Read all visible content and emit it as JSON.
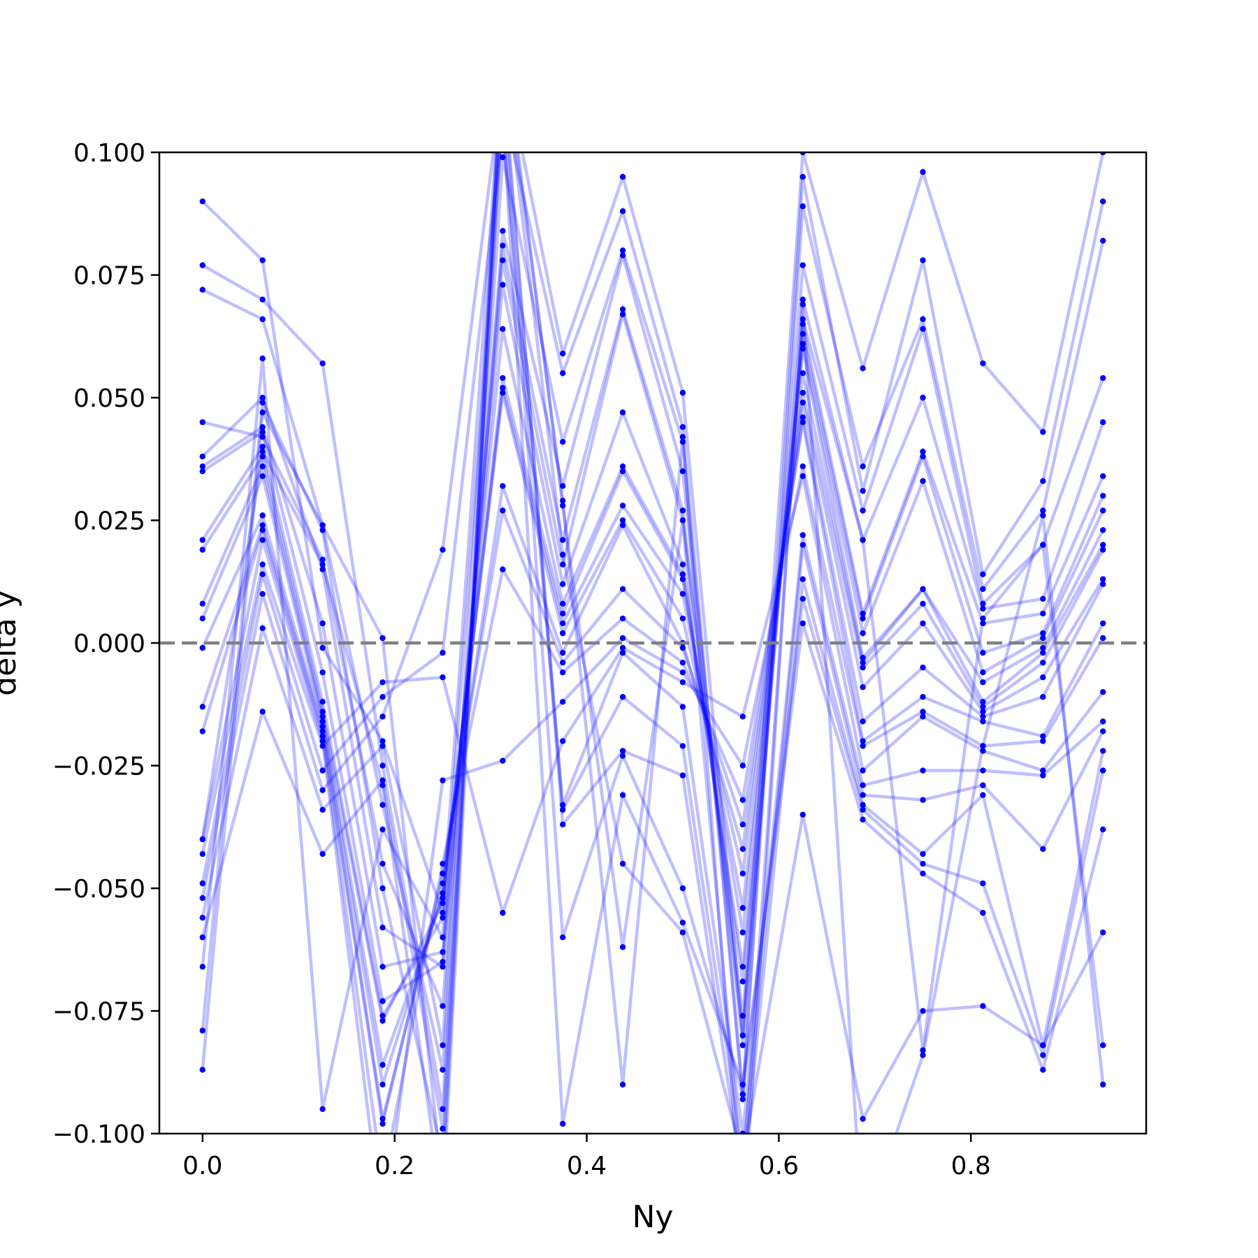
{
  "chart_data": {
    "type": "line",
    "title": "",
    "xlabel": "Ny",
    "ylabel": "delta y",
    "xlim": [
      -0.045,
      0.9825
    ],
    "ylim": [
      -0.1,
      0.1
    ],
    "xticks": [
      0.0,
      0.2,
      0.4,
      0.6,
      0.8
    ],
    "xtick_labels": [
      "0.0",
      "0.2",
      "0.4",
      "0.6",
      "0.8"
    ],
    "yticks": [
      -0.1,
      -0.075,
      -0.05,
      -0.025,
      0.0,
      0.025,
      0.05,
      0.075,
      0.1
    ],
    "ytick_labels": [
      "−0.100",
      "−0.075",
      "−0.050",
      "−0.025",
      "0.000",
      "0.025",
      "0.050",
      "0.075",
      "0.100"
    ],
    "reference_line": {
      "y": 0.0,
      "style": "dashed",
      "color": "#808080"
    },
    "grid": false,
    "legend": "none",
    "line_color": "#0000ff",
    "line_alpha": 0.25,
    "marker_color": "#0000ff",
    "x": [
      0.0,
      0.0625,
      0.125,
      0.1875,
      0.25,
      0.3125,
      0.375,
      0.4375,
      0.5,
      0.5625,
      0.625,
      0.6875,
      0.75,
      0.8125,
      0.875,
      0.9375
    ],
    "series": [
      {
        "values": [
          0.09,
          0.078,
          -0.001,
          -0.02,
          -0.055,
          0.12,
          0.059,
          0.095,
          0.051,
          -0.08,
          0.1,
          0.056,
          0.096,
          0.057,
          0.043,
          0.1
        ]
      },
      {
        "values": [
          0.077,
          0.07,
          0.057,
          -0.025,
          -0.095,
          0.11,
          0.055,
          0.088,
          0.044,
          -0.092,
          0.095,
          0.031,
          0.078,
          0.014,
          0.033,
          0.09
        ]
      },
      {
        "values": [
          0.072,
          0.066,
          0.024,
          -0.033,
          -0.087,
          0.099,
          0.041,
          0.08,
          0.041,
          -0.093,
          0.089,
          0.036,
          0.066,
          0.011,
          0.027,
          0.082
        ]
      },
      {
        "values": [
          0.045,
          0.042,
          0.017,
          -0.045,
          -0.074,
          0.084,
          0.032,
          0.079,
          0.035,
          -0.082,
          0.077,
          0.027,
          0.064,
          0.008,
          0.02,
          0.054
        ]
      },
      {
        "values": [
          0.038,
          0.05,
          0.015,
          -0.058,
          -0.066,
          0.081,
          0.021,
          0.068,
          0.027,
          -0.08,
          0.07,
          0.021,
          0.05,
          0.007,
          0.009,
          0.045
        ]
      },
      {
        "values": [
          0.036,
          0.044,
          0.004,
          -0.066,
          -0.063,
          0.078,
          0.016,
          0.067,
          0.025,
          -0.076,
          0.065,
          0.006,
          0.039,
          0.004,
          0.006,
          0.034
        ]
      },
      {
        "values": [
          0.035,
          0.043,
          -0.006,
          -0.073,
          -0.065,
          0.073,
          0.012,
          0.047,
          0.016,
          -0.069,
          0.063,
          0.005,
          0.038,
          -0.002,
          0.002,
          0.03
        ]
      },
      {
        "values": [
          0.021,
          0.04,
          -0.012,
          -0.076,
          -0.056,
          0.064,
          0.008,
          0.036,
          0.014,
          -0.066,
          0.061,
          0.002,
          0.033,
          -0.006,
          0.001,
          0.027
        ]
      },
      {
        "values": [
          0.019,
          0.038,
          -0.014,
          -0.077,
          -0.053,
          0.054,
          0.006,
          0.035,
          0.013,
          -0.059,
          0.06,
          -0.003,
          0.011,
          -0.008,
          -0.001,
          0.023
        ]
      },
      {
        "values": [
          0.008,
          0.036,
          -0.015,
          -0.086,
          -0.052,
          0.052,
          0.004,
          0.028,
          0.01,
          -0.054,
          0.055,
          -0.004,
          0.011,
          -0.012,
          -0.002,
          0.02
        ]
      },
      {
        "values": [
          0.005,
          0.034,
          -0.016,
          -0.09,
          -0.051,
          0.051,
          0.002,
          0.025,
          0.005,
          -0.047,
          0.051,
          -0.005,
          0.008,
          -0.013,
          -0.004,
          0.019
        ]
      },
      {
        "values": [
          -0.001,
          0.026,
          -0.017,
          -0.097,
          -0.049,
          0.032,
          -0.002,
          0.024,
          0.0,
          -0.042,
          0.049,
          -0.009,
          0.004,
          -0.014,
          -0.007,
          0.013
        ]
      },
      {
        "values": [
          -0.013,
          0.024,
          -0.018,
          -0.098,
          -0.047,
          0.027,
          -0.004,
          0.011,
          -0.001,
          -0.037,
          0.046,
          -0.016,
          -0.005,
          -0.015,
          -0.011,
          0.012
        ]
      },
      {
        "values": [
          -0.018,
          0.023,
          -0.019,
          -0.11,
          -0.045,
          0.015,
          -0.006,
          0.005,
          -0.004,
          -0.032,
          0.045,
          -0.02,
          -0.011,
          -0.016,
          -0.019,
          0.004
        ]
      },
      {
        "values": [
          -0.04,
          0.021,
          -0.02,
          -0.12,
          -0.028,
          -0.024,
          -0.012,
          0.001,
          -0.006,
          -0.025,
          0.036,
          -0.021,
          -0.014,
          -0.021,
          -0.02,
          0.001
        ]
      },
      {
        "values": [
          -0.043,
          0.016,
          -0.021,
          -0.008,
          -0.007,
          -0.055,
          -0.02,
          -0.001,
          -0.008,
          -0.015,
          0.034,
          -0.026,
          -0.015,
          -0.022,
          -0.026,
          -0.01
        ]
      },
      {
        "values": [
          -0.049,
          0.014,
          -0.026,
          -0.011,
          -0.002,
          0.105,
          -0.033,
          -0.002,
          -0.013,
          -0.1,
          0.022,
          -0.029,
          -0.026,
          -0.026,
          -0.027,
          -0.016
        ]
      },
      {
        "values": [
          -0.052,
          0.01,
          -0.03,
          -0.015,
          0.019,
          0.115,
          -0.034,
          -0.011,
          -0.021,
          -0.105,
          0.02,
          -0.031,
          -0.032,
          -0.029,
          -0.042,
          -0.018
        ]
      },
      {
        "values": [
          -0.056,
          0.003,
          -0.034,
          -0.021,
          -0.082,
          0.118,
          -0.037,
          -0.022,
          -0.027,
          -0.11,
          0.013,
          -0.033,
          -0.043,
          -0.031,
          -0.082,
          -0.022
        ]
      },
      {
        "values": [
          -0.06,
          -0.014,
          -0.043,
          -0.028,
          -0.099,
          0.112,
          -0.06,
          -0.023,
          -0.05,
          -0.092,
          0.009,
          -0.034,
          -0.045,
          -0.049,
          -0.084,
          -0.026
        ]
      },
      {
        "values": [
          -0.066,
          0.058,
          -0.095,
          -0.038,
          -0.06,
          0.108,
          -0.098,
          -0.031,
          -0.057,
          -0.09,
          0.004,
          -0.036,
          -0.047,
          -0.055,
          -0.087,
          -0.038
        ]
      },
      {
        "values": [
          -0.079,
          0.049,
          0.023,
          -0.05,
          -0.105,
          0.12,
          0.018,
          -0.045,
          -0.059,
          -0.105,
          -0.035,
          -0.097,
          -0.075,
          -0.074,
          -0.082,
          -0.059
        ]
      },
      {
        "values": [
          -0.087,
          0.047,
          0.024,
          0.001,
          -0.11,
          0.125,
          0.028,
          -0.062,
          0.025,
          -0.11,
          0.066,
          0.021,
          -0.083,
          0.005,
          0.02,
          -0.082
        ]
      },
      {
        "values": [
          -0.04,
          0.039,
          0.016,
          -0.029,
          -0.115,
          0.122,
          0.029,
          -0.09,
          0.042,
          -0.12,
          0.069,
          -0.12,
          -0.084,
          -0.021,
          0.026,
          -0.09
        ]
      }
    ]
  }
}
